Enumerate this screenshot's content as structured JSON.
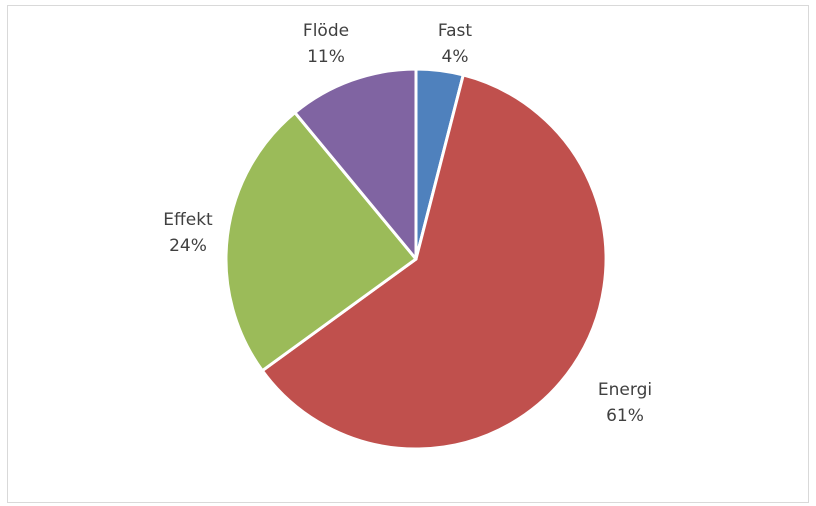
{
  "chart_data": {
    "type": "pie",
    "title": "",
    "slices": [
      {
        "name": "Fast",
        "value": 4,
        "label": "4%",
        "color": "#4f81bd"
      },
      {
        "name": "Energi",
        "value": 61,
        "label": "61%",
        "color": "#c0504d"
      },
      {
        "name": "Effekt",
        "value": 24,
        "label": "24%",
        "color": "#9bbb59"
      },
      {
        "name": "Flöde",
        "value": 11,
        "label": "11%",
        "color": "#8064a2"
      }
    ],
    "start": "12 o'clock",
    "direction": "clockwise",
    "legend": "none",
    "data_labels": "category name and percentage, outside slices"
  }
}
